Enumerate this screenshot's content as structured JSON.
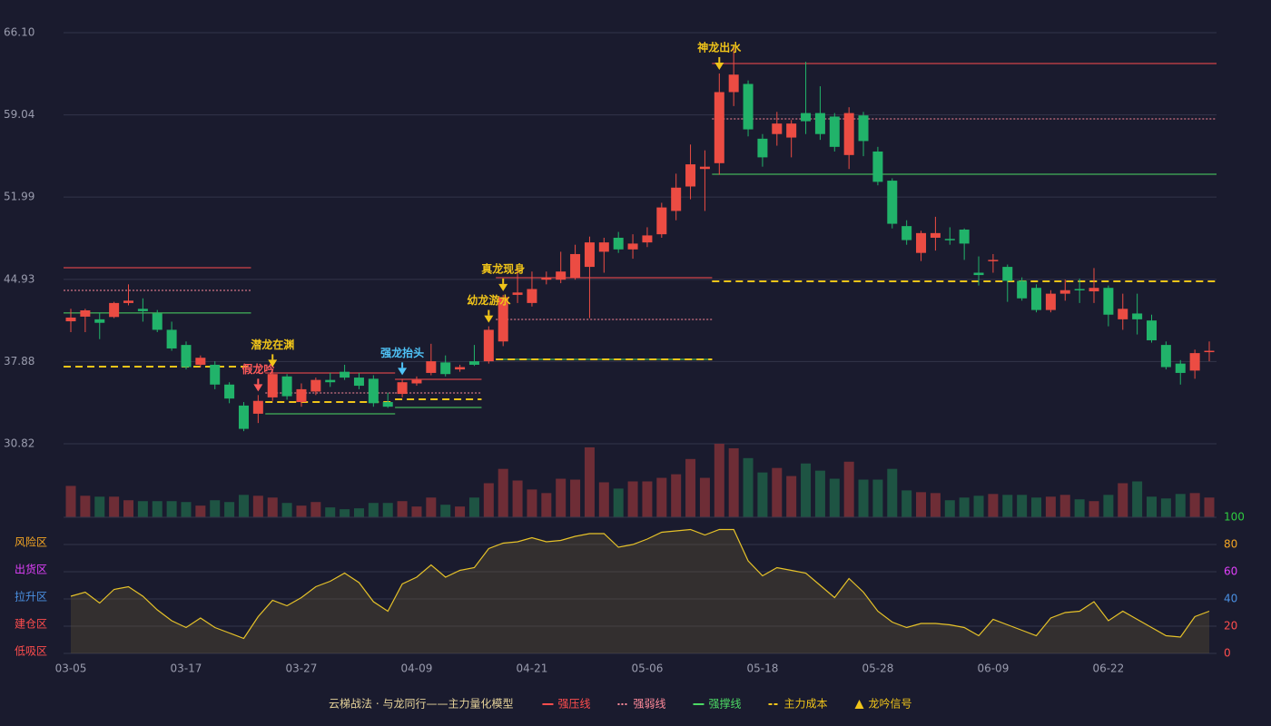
{
  "chart_data": {
    "type": "candlestick",
    "footnote": "云梯战法 · 与龙同行——主力量化模型",
    "categories": [
      "03-05",
      null,
      null,
      null,
      null,
      null,
      null,
      null,
      "03-17",
      null,
      null,
      null,
      null,
      null,
      null,
      null,
      "03-27",
      null,
      null,
      null,
      null,
      null,
      null,
      null,
      "04-09",
      null,
      null,
      null,
      null,
      null,
      null,
      null,
      "04-21",
      null,
      null,
      null,
      null,
      null,
      null,
      null,
      "05-06",
      null,
      null,
      null,
      null,
      null,
      null,
      null,
      "05-18",
      null,
      null,
      null,
      null,
      null,
      null,
      null,
      "05-28",
      null,
      null,
      null,
      null,
      null,
      null,
      null,
      "06-09",
      null,
      null,
      null,
      null,
      null,
      null,
      null,
      "06-22",
      null,
      null,
      null,
      null,
      null,
      null,
      null
    ],
    "open": [
      41.33,
      41.73,
      41.5,
      41.7,
      42.9,
      42.4,
      42.0,
      40.6,
      39.3,
      37.6,
      37.6,
      35.9,
      34.1,
      33.4,
      34.8,
      36.6,
      34.4,
      35.3,
      36.3,
      37.0,
      36.5,
      36.4,
      34.4,
      35.1,
      36.0,
      36.9,
      37.8,
      37.2,
      37.9,
      37.9,
      39.6,
      43.6,
      42.9,
      44.9,
      44.9,
      45.1,
      46.0,
      47.3,
      48.5,
      47.5,
      48.1,
      48.8,
      50.8,
      52.9,
      54.4,
      54.9,
      61.0,
      61.7,
      57.0,
      57.4,
      57.1,
      59.2,
      59.2,
      58.9,
      55.6,
      59.0,
      55.9,
      53.4,
      49.5,
      47.2,
      48.5,
      48.4,
      49.2,
      45.5,
      46.5,
      46.0,
      44.8,
      44.2,
      42.3,
      43.7,
      44.1,
      43.9,
      44.2,
      41.5,
      42.0,
      41.4,
      39.3,
      37.7,
      37.1,
      38.7
    ],
    "high": [
      42.4,
      42.4,
      42.1,
      43.0,
      44.5,
      43.3,
      42.3,
      41.3,
      39.6,
      38.4,
      37.9,
      36.1,
      34.4,
      35.0,
      37.1,
      36.8,
      36.0,
      36.5,
      36.9,
      37.6,
      36.9,
      36.7,
      35.2,
      36.4,
      36.6,
      39.4,
      38.4,
      37.6,
      39.3,
      40.9,
      43.6,
      45.9,
      45.6,
      45.6,
      47.3,
      47.9,
      48.6,
      48.5,
      49.0,
      48.8,
      49.4,
      51.5,
      54.0,
      56.5,
      56.0,
      62.6,
      64.9,
      62.0,
      57.4,
      59.3,
      58.6,
      63.6,
      61.5,
      59.2,
      59.7,
      59.3,
      56.3,
      53.6,
      50.0,
      49.1,
      50.3,
      49.4,
      49.3,
      46.9,
      47.1,
      46.2,
      45.1,
      44.5,
      44.0,
      44.9,
      45.0,
      45.9,
      44.4,
      43.7,
      43.7,
      41.9,
      39.6,
      38.0,
      38.9,
      39.6
    ],
    "low": [
      40.4,
      40.4,
      39.8,
      41.6,
      42.7,
      41.3,
      40.4,
      38.8,
      37.2,
      37.4,
      35.5,
      34.3,
      31.9,
      32.6,
      34.5,
      34.6,
      34.0,
      35.0,
      35.7,
      36.3,
      35.5,
      34.0,
      33.9,
      34.8,
      35.8,
      36.7,
      36.6,
      37.0,
      37.5,
      37.7,
      39.2,
      42.9,
      42.6,
      44.5,
      44.6,
      44.9,
      41.6,
      45.5,
      47.2,
      46.7,
      47.7,
      48.5,
      50.0,
      51.8,
      50.8,
      53.9,
      59.8,
      57.2,
      54.6,
      56.4,
      55.4,
      57.4,
      56.9,
      55.9,
      54.4,
      55.5,
      53.0,
      49.3,
      47.9,
      46.5,
      47.4,
      47.9,
      46.6,
      44.4,
      45.5,
      43.0,
      43.1,
      42.1,
      42.1,
      43.1,
      42.9,
      42.9,
      40.9,
      40.6,
      40.2,
      39.5,
      37.2,
      35.9,
      36.4,
      37.9
    ],
    "close": [
      41.65,
      42.27,
      41.2,
      42.9,
      43.1,
      42.2,
      40.6,
      39.0,
      37.4,
      38.2,
      35.9,
      34.7,
      32.1,
      34.5,
      36.8,
      34.9,
      35.5,
      36.3,
      36.1,
      36.5,
      35.8,
      34.3,
      34.0,
      36.1,
      36.3,
      37.9,
      36.8,
      37.4,
      37.6,
      40.6,
      43.4,
      43.8,
      44.1,
      45.1,
      45.6,
      47.1,
      48.1,
      48.1,
      47.5,
      48.0,
      48.7,
      51.1,
      52.8,
      54.8,
      54.6,
      61.0,
      62.5,
      57.8,
      55.4,
      58.3,
      58.3,
      58.5,
      57.4,
      56.3,
      59.2,
      56.8,
      53.3,
      49.7,
      48.3,
      48.9,
      48.9,
      48.3,
      48.0,
      45.3,
      46.6,
      44.8,
      43.3,
      42.3,
      43.7,
      44.0,
      44.0,
      44.2,
      41.9,
      42.4,
      41.5,
      39.7,
      37.4,
      36.9,
      38.6,
      38.8
    ],
    "up_color": "#ec4c43",
    "down_color": "#21b36a",
    "ylim": [
      30.82,
      66.1
    ],
    "yticks": [
      30.82,
      37.88,
      44.93,
      51.99,
      59.04,
      {
        "value": 66.1,
        "label": "66.10"
      }
    ],
    "grid": true,
    "volume": {
      "values": [
        35,
        24,
        23,
        23,
        19,
        18,
        18,
        18,
        17,
        13,
        19,
        17,
        25,
        24,
        22,
        16,
        13,
        17,
        11,
        9,
        10,
        16,
        16,
        18,
        12,
        22,
        14,
        12,
        22,
        38,
        54,
        41,
        31,
        27,
        43,
        42,
        78,
        39,
        32,
        40,
        40,
        44,
        48,
        65,
        44,
        82,
        77,
        66,
        50,
        55,
        46,
        60,
        52,
        43,
        62,
        42,
        42,
        54,
        30,
        28,
        27,
        19,
        22,
        24,
        26,
        25,
        25,
        22,
        23,
        25,
        20,
        18,
        25,
        38,
        40,
        23,
        21,
        26,
        27,
        22
      ],
      "up_color": "#6e2d36",
      "down_color": "#1e5443"
    },
    "levels": [
      {
        "name": "强压线",
        "color": "#ff4d4d",
        "style": "solid",
        "segments": [
          {
            "start": 0,
            "end": 12,
            "value": 45.93
          },
          {
            "start": 14,
            "end": 22,
            "value": 36.89
          },
          {
            "start": 23,
            "end": 28,
            "value": 36.35
          },
          {
            "start": 30,
            "end": 44,
            "value": 45.07
          },
          {
            "start": 45,
            "end": 79,
            "value": 63.45
          }
        ]
      },
      {
        "name": "强弱线",
        "color": "#ff8a9a",
        "style": "dotted",
        "segments": [
          {
            "start": 0,
            "end": 12,
            "value": 43.98
          },
          {
            "start": 14,
            "end": 22,
            "value": 35.18
          },
          {
            "start": 23,
            "end": 28,
            "value": 35.18
          },
          {
            "start": 30,
            "end": 44,
            "value": 41.49
          },
          {
            "start": 45,
            "end": 79,
            "value": 58.7
          }
        ]
      },
      {
        "name": "强撑线",
        "color": "#4cd964",
        "style": "solid",
        "segments": [
          {
            "start": 0,
            "end": 12,
            "value": 42.04
          },
          {
            "start": 14,
            "end": 22,
            "value": 33.39
          },
          {
            "start": 23,
            "end": 28,
            "value": 33.94
          },
          {
            "start": 30,
            "end": 44,
            "value": 38.06
          },
          {
            "start": 45,
            "end": 79,
            "value": 53.95
          }
        ]
      },
      {
        "name": "主力成本",
        "color": "#f0c419",
        "style": "dashed",
        "segments": [
          {
            "start": 0,
            "end": 12,
            "value": 37.44
          },
          {
            "start": 14,
            "end": 22,
            "value": 34.4
          },
          {
            "start": 23,
            "end": 28,
            "value": 34.64
          },
          {
            "start": 30,
            "end": 44,
            "value": 38.06
          },
          {
            "start": 45,
            "end": 79,
            "value": 44.76
          }
        ]
      }
    ],
    "signals": {
      "name": "龙吟信号",
      "color": "#f0c419",
      "items": [
        {
          "label": "假龙吟",
          "index": 13,
          "color": "#ff5a5a"
        },
        {
          "label": "潜龙在渊",
          "index": 14,
          "color": "#f0c419"
        },
        {
          "label": "强龙抬头",
          "index": 23,
          "color": "#4fc3f7"
        },
        {
          "label": "幼龙游水",
          "index": 29,
          "color": "#f0c419"
        },
        {
          "label": "真龙现身",
          "index": 30,
          "color": "#f0c419"
        },
        {
          "label": "神龙出水",
          "index": 45,
          "color": "#f0c419"
        }
      ]
    },
    "oscillator": {
      "values": [
        42,
        45,
        37,
        47,
        49,
        42,
        32,
        24,
        19,
        26,
        19,
        15,
        11,
        27,
        39,
        35,
        41,
        49,
        53,
        59,
        52,
        38,
        31,
        51,
        56,
        65,
        56,
        61,
        63,
        77,
        81,
        82,
        85,
        82,
        83,
        86,
        88,
        88,
        78,
        80,
        84,
        89,
        90,
        91,
        87,
        91,
        91,
        68,
        57,
        63,
        61,
        59,
        50,
        41,
        55,
        45,
        31,
        23,
        19,
        22,
        22,
        21,
        19,
        13,
        25,
        21,
        17,
        13,
        26,
        30,
        31,
        38,
        24,
        31,
        25,
        19,
        13,
        12,
        27,
        31
      ],
      "color": "#e6c229",
      "ylim": [
        0,
        100
      ],
      "yticks": [
        0,
        20,
        40,
        60,
        80,
        100
      ],
      "ytick_colors": [
        "#ff4d4d",
        "#ff4d4d",
        "#4a90e2",
        "#e040fb",
        "#f5a623",
        "#2ecc40"
      ],
      "zones": [
        {
          "label": "低吸区",
          "value": 0,
          "color": "#ff4d4d"
        },
        {
          "label": "建仓区",
          "value": 20,
          "color": "#ff4d4d"
        },
        {
          "label": "拉升区",
          "value": 40,
          "color": "#4a90e2"
        },
        {
          "label": "出货区",
          "value": 60,
          "color": "#e040fb"
        },
        {
          "label": "风险区",
          "value": 80,
          "color": "#f5a623"
        }
      ]
    }
  }
}
